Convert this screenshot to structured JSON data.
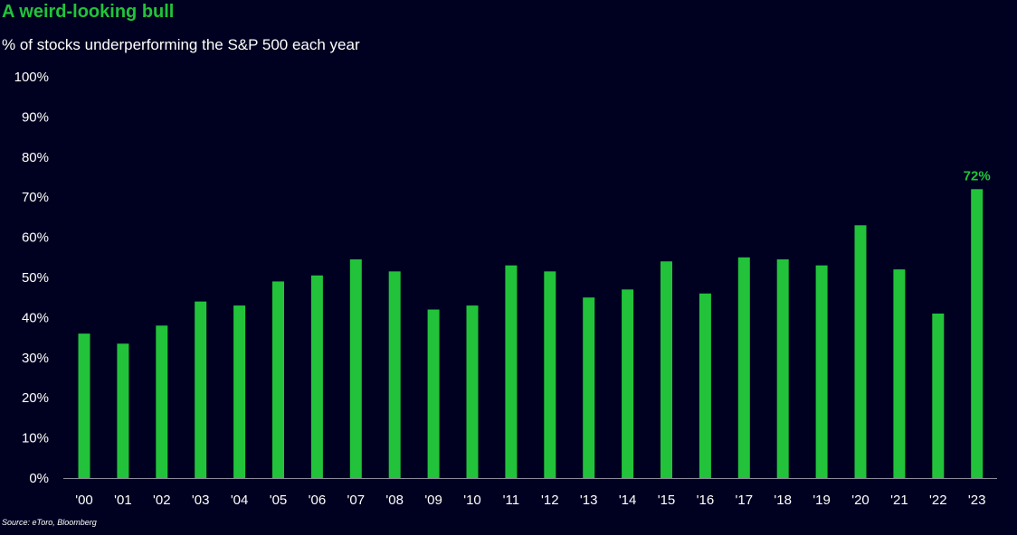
{
  "title": "A weird-looking bull",
  "subtitle": "% of stocks underperforming the S&P 500 each year",
  "source": "Source: eToro, Bloomberg",
  "colors": {
    "background": "#000120",
    "bar": "#22c33a",
    "title": "#22c33a",
    "text": "#ffffff"
  },
  "chart_data": {
    "type": "bar",
    "title": "A weird-looking bull",
    "subtitle": "% of stocks underperforming the S&P 500 each year",
    "xlabel": "",
    "ylabel": "",
    "ylim": [
      0,
      100
    ],
    "grid": false,
    "categories": [
      "'00",
      "'01",
      "'02",
      "'03",
      "'04",
      "'05",
      "'06",
      "'07",
      "'08",
      "'09",
      "'10",
      "'11",
      "'12",
      "'13",
      "'14",
      "'15",
      "'16",
      "'17",
      "'18",
      "'19",
      "'20",
      "'21",
      "'22",
      "'23"
    ],
    "values": [
      36,
      33.5,
      38,
      44,
      43,
      49,
      50.5,
      54.5,
      51.5,
      42,
      43,
      53,
      51.5,
      45,
      47,
      54,
      46,
      55,
      54.5,
      53,
      63,
      52,
      41,
      72
    ],
    "y_ticks": [
      "0%",
      "10%",
      "20%",
      "30%",
      "40%",
      "50%",
      "60%",
      "70%",
      "80%",
      "90%",
      "100%"
    ],
    "annotations": [
      {
        "category": "'23",
        "text": "72%"
      }
    ]
  }
}
